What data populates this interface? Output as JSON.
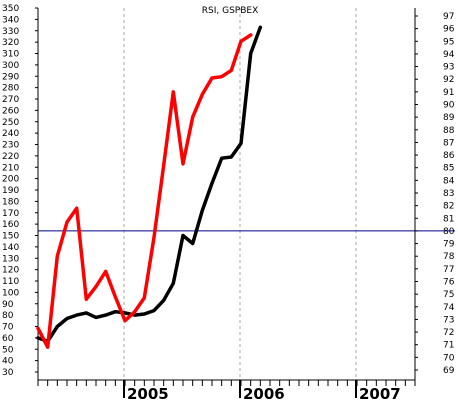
{
  "chart_data": {
    "type": "line",
    "title": "RSI, GSPBEX",
    "left_axis": {
      "min": 30,
      "max": 350,
      "step": 10,
      "ticks": [
        "30",
        "40",
        "50",
        "60",
        "70",
        "80",
        "90",
        "100",
        "110",
        "120",
        "130",
        "140",
        "150",
        "160",
        "170",
        "180",
        "190",
        "200",
        "210",
        "220",
        "230",
        "240",
        "250",
        "260",
        "270",
        "280",
        "290",
        "300",
        "310",
        "320",
        "330",
        "340",
        "350"
      ]
    },
    "right_axis": {
      "min": 69,
      "max": 97,
      "step": 1,
      "ticks": [
        "69",
        "70",
        "71",
        "72",
        "73",
        "74",
        "75",
        "76",
        "77",
        "78",
        "79",
        "80",
        "81",
        "82",
        "83",
        "84",
        "85",
        "86",
        "87",
        "88",
        "89",
        "90",
        "91",
        "92",
        "93",
        "94",
        "95",
        "96",
        "97"
      ]
    },
    "x_axis": {
      "start": "2004-04",
      "end": "2007-07",
      "year_labels": [
        "2005",
        "2006",
        "2007"
      ],
      "year_starts": [
        "2005-01",
        "2006-01",
        "2007-01"
      ]
    },
    "reference_line": {
      "value": 80,
      "axis": "right",
      "color": "#00008b"
    },
    "grid": "vertical dashed at year starts",
    "series": [
      {
        "axis": "left",
        "color": "#000000",
        "points": [
          [
            "2004-04",
            60
          ],
          [
            "2004-05",
            57
          ],
          [
            "2004-06",
            70
          ],
          [
            "2004-07",
            77
          ],
          [
            "2004-08",
            80
          ],
          [
            "2004-09",
            82
          ],
          [
            "2004-10",
            78
          ],
          [
            "2004-11",
            80
          ],
          [
            "2004-12",
            83
          ],
          [
            "2005-01",
            82
          ],
          [
            "2005-02",
            80
          ],
          [
            "2005-03",
            81
          ],
          [
            "2005-04",
            84
          ],
          [
            "2005-05",
            93
          ],
          [
            "2005-06",
            108
          ],
          [
            "2005-07",
            150
          ],
          [
            "2005-08",
            143
          ],
          [
            "2005-09",
            172
          ],
          [
            "2005-10",
            196
          ],
          [
            "2005-11",
            218
          ],
          [
            "2005-12",
            219
          ],
          [
            "2006-01",
            231
          ],
          [
            "2006-02",
            310
          ],
          [
            "2006-03",
            333
          ]
        ]
      },
      {
        "axis": "right",
        "color": "#ff0000",
        "points": [
          [
            "2004-04",
            72.3
          ],
          [
            "2004-05",
            70.8
          ],
          [
            "2004-06",
            78.0
          ],
          [
            "2004-07",
            80.7
          ],
          [
            "2004-08",
            81.8
          ],
          [
            "2004-09",
            74.6
          ],
          [
            "2004-10",
            75.6
          ],
          [
            "2004-11",
            76.8
          ],
          [
            "2004-12",
            74.8
          ],
          [
            "2005-01",
            72.9
          ],
          [
            "2005-02",
            73.6
          ],
          [
            "2005-03",
            74.7
          ],
          [
            "2005-04",
            79.5
          ],
          [
            "2005-05",
            85.2
          ],
          [
            "2005-06",
            91.0
          ],
          [
            "2005-07",
            85.3
          ],
          [
            "2005-08",
            89.0
          ],
          [
            "2005-09",
            90.8
          ],
          [
            "2005-10",
            92.1
          ],
          [
            "2005-11",
            92.2
          ],
          [
            "2005-12",
            92.7
          ],
          [
            "2006-01",
            95.0
          ],
          [
            "2006-02",
            95.5
          ]
        ]
      }
    ]
  }
}
